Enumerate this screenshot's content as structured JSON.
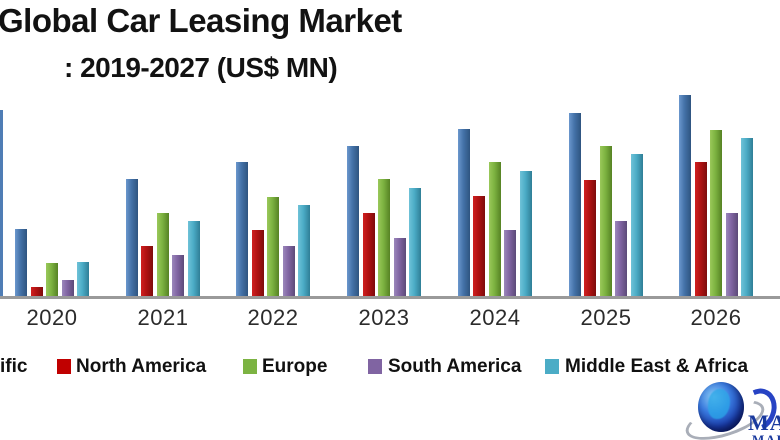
{
  "title": {
    "line1": "Global Car Leasing Market",
    "line2": ": 2019-2027 (US$ MN)"
  },
  "chart_data": {
    "type": "bar",
    "title": "Global Car Leasing Market : 2019-2027 (US$ MN)",
    "note": "No y-axis or gridlines shown; values are relative bar heights estimated from pixels (arbitrary units). Leftmost group (2019) and part of first legend label are cropped out of frame.",
    "categories": [
      "2020",
      "2021",
      "2022",
      "2023",
      "2024",
      "2025",
      "2026"
    ],
    "series": [
      {
        "name": "Asia Pacific",
        "color": "#4472a8",
        "values": [
          67,
          117,
          134,
          150,
          167,
          183,
          201
        ]
      },
      {
        "name": "North America",
        "color": "#b01212",
        "values": [
          9,
          50,
          66,
          83,
          100,
          116,
          134
        ]
      },
      {
        "name": "Europe",
        "color": "#7cb240",
        "values": [
          33,
          83,
          99,
          117,
          134,
          150,
          166
        ]
      },
      {
        "name": "South America",
        "color": "#8064a2",
        "values": [
          16,
          41,
          50,
          58,
          66,
          75,
          83
        ]
      },
      {
        "name": "Middle East & Africa",
        "color": "#4bacc6",
        "values": [
          34,
          75,
          91,
          108,
          125,
          142,
          158
        ]
      }
    ],
    "xlabel": "",
    "ylabel": "",
    "ylim": [
      0,
      220
    ],
    "grid": false,
    "legend_position": "bottom"
  },
  "legend": {
    "items": [
      {
        "label": "ific",
        "swatch_color": null
      },
      {
        "label": "North America",
        "swatch_color": "#c00000"
      },
      {
        "label": "Europe",
        "swatch_color": "#7cb342"
      },
      {
        "label": "South America",
        "swatch_color": "#8064a2"
      },
      {
        "label": "Middle East & Africa",
        "swatch_color": "#4bacc6"
      }
    ]
  },
  "logo": {
    "text_line1": "MAX",
    "text_line2": "MARKE",
    "accent_color": "#1a3a9e"
  }
}
